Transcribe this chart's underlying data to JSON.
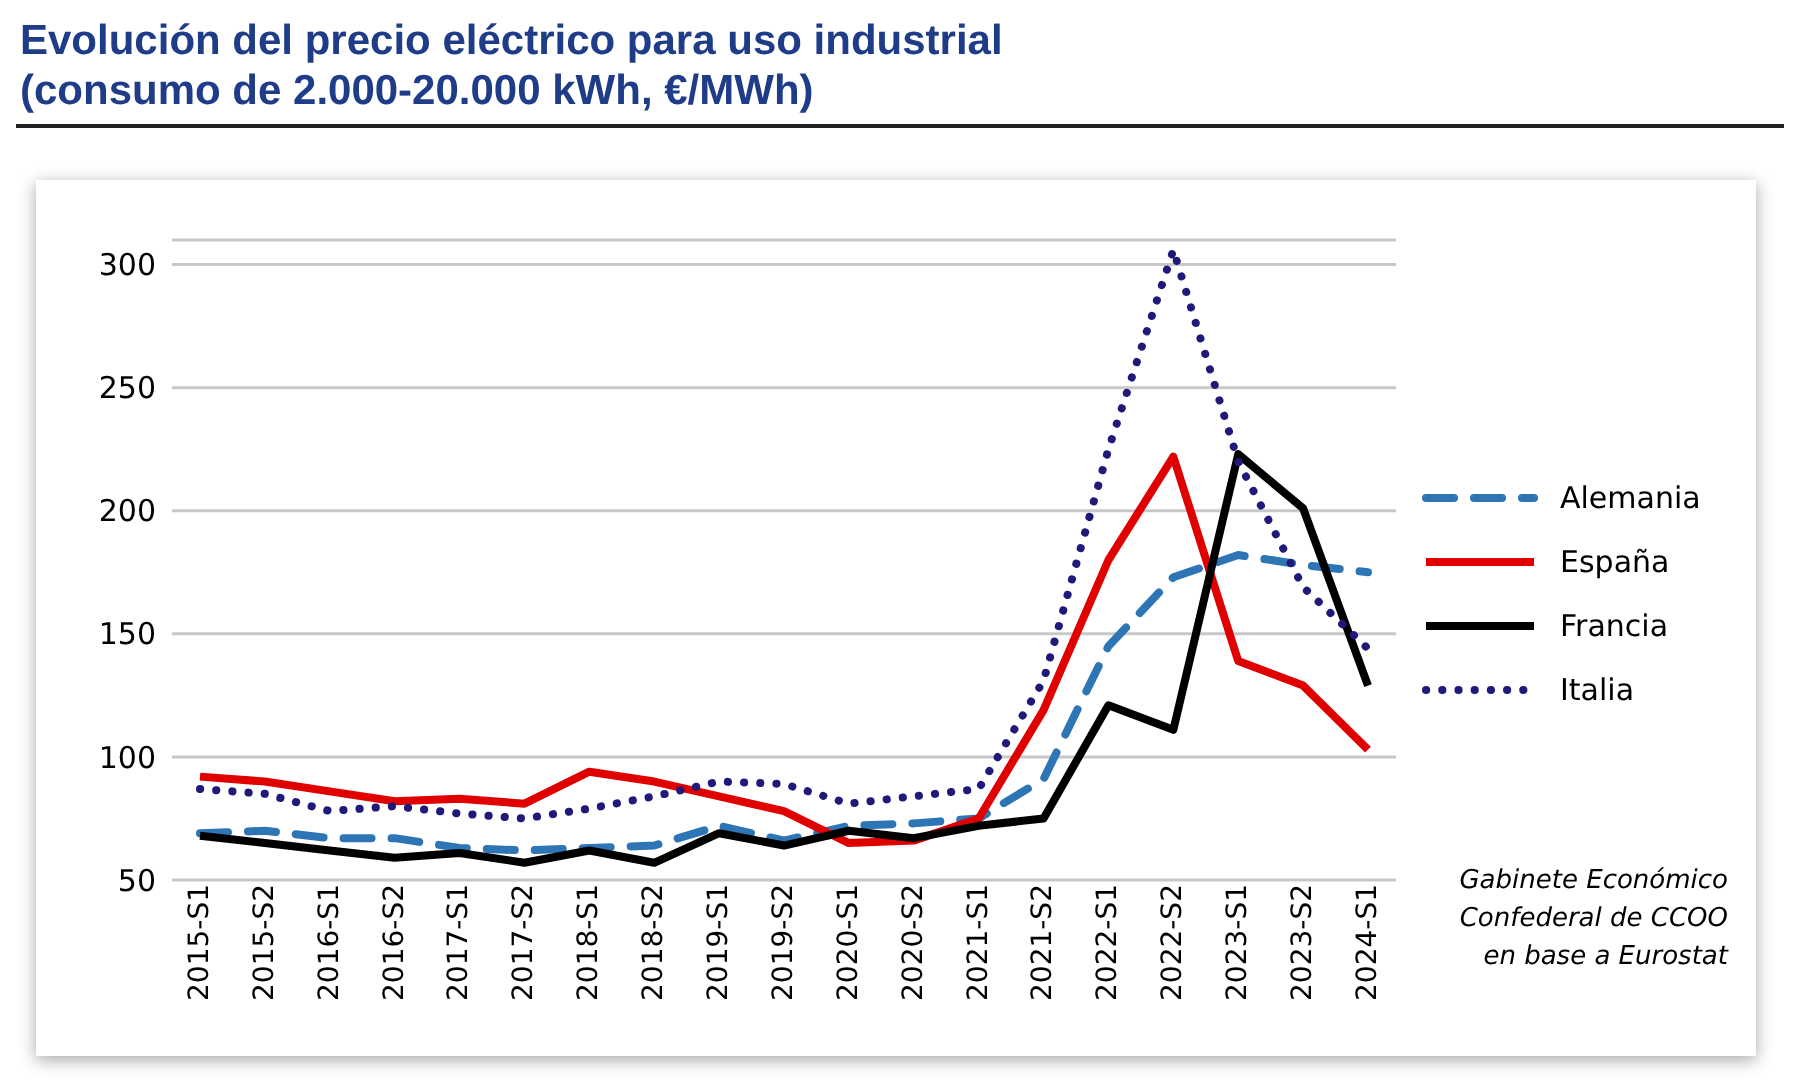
{
  "chart_data": {
    "type": "line",
    "title": "Evolución del precio eléctrico para uso industrial\n(consumo de 2.000-20.000 kWh, €/MWh)",
    "categories": [
      "2015-S1",
      "2015-S2",
      "2016-S1",
      "2016-S2",
      "2017-S1",
      "2017-S2",
      "2018-S1",
      "2018-S2",
      "2019-S1",
      "2019-S2",
      "2020-S1",
      "2020-S2",
      "2021-S1",
      "2021-S2",
      "2022-S1",
      "2022-S2",
      "2023-S1",
      "2023-S2",
      "2024-S1"
    ],
    "series": [
      {
        "name": "Alemania",
        "color": "#2e75b6",
        "line_style": "dashed",
        "values": [
          69,
          70,
          67,
          67,
          63,
          62,
          63,
          64,
          72,
          66,
          72,
          73,
          75,
          91,
          145,
          173,
          182,
          178,
          175
        ]
      },
      {
        "name": "España",
        "color": "#e00000",
        "line_style": "solid",
        "values": [
          92,
          90,
          86,
          82,
          83,
          81,
          94,
          90,
          84,
          78,
          65,
          66,
          75,
          119,
          180,
          222,
          139,
          129,
          103
        ]
      },
      {
        "name": "Francia",
        "color": "#000000",
        "line_style": "solid",
        "values": [
          68,
          65,
          62,
          59,
          61,
          57,
          62,
          57,
          69,
          64,
          70,
          67,
          72,
          75,
          121,
          111,
          223,
          201,
          129
        ]
      },
      {
        "name": "Italia",
        "color": "#1f1a7a",
        "line_style": "dotted",
        "values": [
          87,
          85,
          78,
          80,
          77,
          75,
          79,
          84,
          90,
          89,
          81,
          84,
          87,
          131,
          225,
          306,
          220,
          169,
          144
        ]
      }
    ],
    "ylim": [
      50,
      310
    ],
    "yticks": [
      50,
      100,
      150,
      200,
      250,
      300
    ],
    "grid": "y",
    "legend": "right",
    "marker": "none",
    "annotations": [
      "Gabinete Económico\nConfederal de CCOO\nen base a Eurostat"
    ]
  }
}
